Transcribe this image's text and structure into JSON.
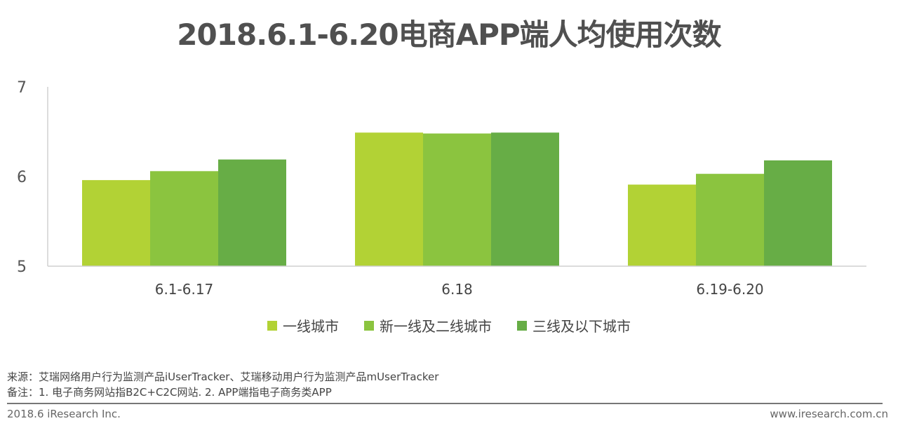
{
  "chart_data": {
    "type": "bar",
    "title": "2018.6.1-6.20电商APP端人均使用次数",
    "categories": [
      "6.1-6.17",
      "6.18",
      "6.19-6.20"
    ],
    "series": [
      {
        "name": "一线城市",
        "color": "#b2d235",
        "values": [
          5.96,
          6.49,
          5.91
        ]
      },
      {
        "name": "新一线及二线城市",
        "color": "#8bc43f",
        "values": [
          6.06,
          6.48,
          6.03
        ]
      },
      {
        "name": "三线及以下城市",
        "color": "#67ad46",
        "values": [
          6.19,
          6.49,
          6.18
        ]
      }
    ],
    "ylim": [
      5,
      7
    ],
    "yticks": [
      "5",
      "6",
      "7"
    ],
    "xlabel": "",
    "ylabel": "",
    "grid": false,
    "legend": "bottom"
  },
  "footer": {
    "source": "来源：艾瑞网络用户行为监测产品iUserTracker、艾瑞移动用户行为监测产品mUserTracker",
    "note": "备注：1. 电子商务网站指B2C+C2C网站. 2. APP端指电子商务类APP",
    "copyright": "2018.6 iResearch Inc.",
    "website": "www.iresearch.com.cn"
  }
}
